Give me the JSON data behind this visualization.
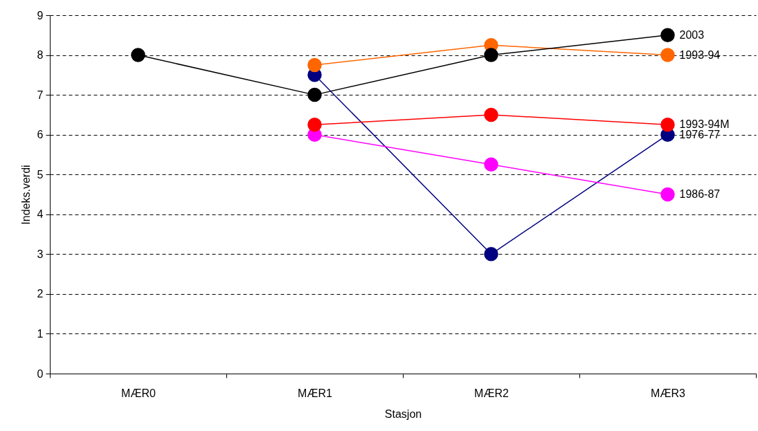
{
  "chart_data": {
    "type": "line",
    "xlabel": "Stasjon",
    "ylabel": "Indeks.verdi",
    "categories": [
      "MÆR0",
      "MÆR1",
      "MÆR2",
      "MÆR3"
    ],
    "series": [
      {
        "name": "1976-77",
        "color": "#000080",
        "values": [
          null,
          7.5,
          3,
          6
        ]
      },
      {
        "name": "1986-87",
        "color": "#ff00ff",
        "values": [
          null,
          6,
          5.25,
          4.5
        ]
      },
      {
        "name": "1993-94M",
        "color": "#ff0000",
        "values": [
          null,
          6.25,
          6.5,
          6.25
        ]
      },
      {
        "name": "1993-94",
        "color": "#ff6600",
        "values": [
          null,
          7.75,
          8.25,
          8
        ]
      },
      {
        "name": "2003",
        "color": "#000000",
        "values": [
          8,
          7,
          8,
          8.5
        ]
      }
    ],
    "ylim": [
      0,
      9
    ],
    "yticks": [
      0,
      1,
      2,
      3,
      4,
      5,
      6,
      7,
      8,
      9
    ],
    "grid": "y",
    "legend": false,
    "marker": "circle",
    "line_style": "solid"
  }
}
